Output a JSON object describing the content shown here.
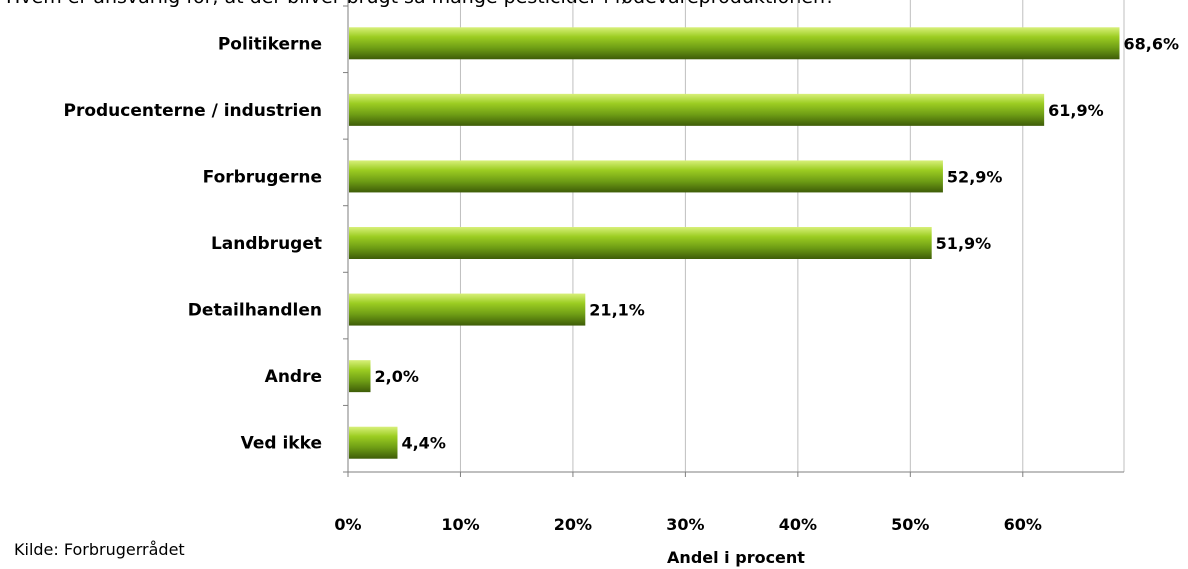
{
  "header_text": "Hvem er ansvarlig for, at der bliver brugt så mange pesticider i fødevareproduktionen?",
  "source": "Kilde: Forbrugerrådet",
  "colors": {
    "bar_light": "#a6d629",
    "bar_mid": "#7fb21a",
    "bar_dark": "#4a6e0c",
    "gridline": "#bfbfbf",
    "axis": "#7f7f7f"
  },
  "chart_data": {
    "type": "bar",
    "orientation": "horizontal",
    "categories": [
      "Politikerne",
      "Producenterne / industrien",
      "Forbrugerne",
      "Landbruget",
      "Detailhandlen",
      "Andre",
      "Ved ikke"
    ],
    "values": [
      68.6,
      61.9,
      52.9,
      51.9,
      21.1,
      2.0,
      4.4
    ],
    "value_labels": [
      "68,6%",
      "61,9%",
      "52,9%",
      "51,9%",
      "21,1%",
      "2,0%",
      "4,4%"
    ],
    "xlabel": "Andel i procent",
    "ylabel": "",
    "xlim": [
      0,
      69
    ],
    "x_ticks": [
      0,
      10,
      20,
      30,
      40,
      50,
      60
    ],
    "x_tick_labels": [
      "0%",
      "10%",
      "20%",
      "30%",
      "40%",
      "50%",
      "60%"
    ],
    "grid": true,
    "legend": "none"
  }
}
